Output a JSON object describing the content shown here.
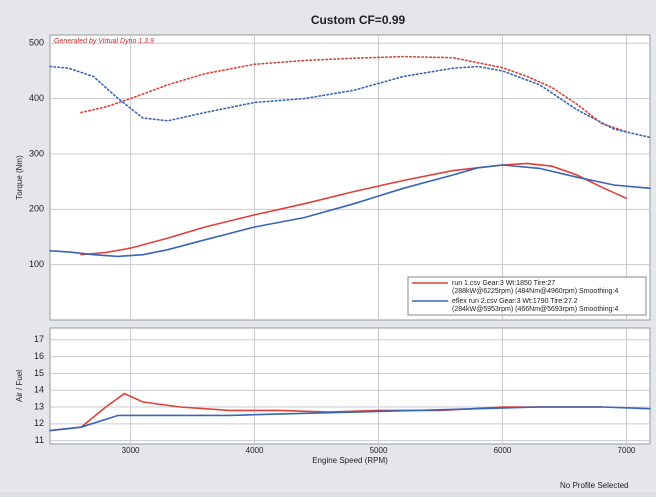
{
  "chart_data": [
    {
      "type": "line",
      "title": "Custom CF=0.99",
      "subtitle": "Generated by Virtual Dyno 1.3.9",
      "y_label": "Torque (Nm)",
      "xlim": [
        2350,
        7190
      ],
      "ylim": [
        0,
        515
      ],
      "xticks": [
        3000,
        4000,
        5000,
        6000,
        7000
      ],
      "yticks": [
        100,
        200,
        300,
        400,
        500
      ],
      "grid": true,
      "legend": "lower right",
      "series": [
        {
          "name": "run 1.csv Gear:3 Wt:1850 Tire:27",
          "detail": "(288kW@6225rpm) (484Nm@4960rpm) Smoothing:4",
          "color": "#e0403a",
          "x": [
            2600,
            2800,
            3000,
            3300,
            3600,
            4000,
            4400,
            4800,
            5200,
            5600,
            6000,
            6200,
            6400,
            6600,
            6800,
            7000
          ],
          "torque": [
            375,
            385,
            400,
            425,
            445,
            462,
            469,
            473,
            476,
            474,
            456,
            440,
            420,
            390,
            355,
            340
          ],
          "power": [
            118,
            122,
            130,
            148,
            168,
            190,
            210,
            232,
            252,
            270,
            280,
            283,
            278,
            262,
            240,
            220
          ]
        },
        {
          "name": "eflex run 2.csv Gear:3 Wt:1790 Tire:27.2",
          "detail": "(284kW@5953rpm) (466Nm@5693rpm) Smoothing:4",
          "color": "#3a64b8",
          "x": [
            2350,
            2500,
            2700,
            2900,
            3100,
            3300,
            3600,
            4000,
            4400,
            4800,
            5200,
            5600,
            5800,
            6000,
            6300,
            6600,
            6900,
            7190
          ],
          "torque": [
            458,
            455,
            440,
            400,
            365,
            360,
            375,
            393,
            400,
            415,
            440,
            455,
            458,
            450,
            425,
            380,
            345,
            330
          ],
          "power": [
            125,
            123,
            118,
            115,
            118,
            127,
            145,
            168,
            185,
            210,
            238,
            262,
            275,
            280,
            274,
            258,
            244,
            238
          ]
        }
      ]
    },
    {
      "type": "line",
      "y_label": "Air / Fuel",
      "x_label": "Engine Speed (RPM)",
      "xlim": [
        2350,
        7190
      ],
      "ylim": [
        10.8,
        17.7
      ],
      "xticks": [
        3000,
        4000,
        5000,
        6000,
        7000
      ],
      "yticks": [
        11,
        12,
        13,
        14,
        15,
        16,
        17
      ],
      "grid": true,
      "series": [
        {
          "color": "#e0403a",
          "x": [
            2350,
            2600,
            2800,
            2950,
            3100,
            3400,
            3800,
            4200,
            4600,
            5000,
            5500,
            6000,
            6500,
            6800
          ],
          "values": [
            11.6,
            11.8,
            13.0,
            13.8,
            13.3,
            13.0,
            12.8,
            12.8,
            12.7,
            12.8,
            12.8,
            13.0,
            13.0,
            13.0
          ]
        },
        {
          "color": "#3a64b8",
          "x": [
            2350,
            2600,
            2900,
            3300,
            3800,
            4300,
            4800,
            5300,
            5800,
            6300,
            6800,
            7190
          ],
          "values": [
            11.6,
            11.8,
            12.5,
            12.5,
            12.5,
            12.6,
            12.7,
            12.8,
            12.9,
            13.0,
            13.0,
            12.9
          ]
        }
      ]
    }
  ],
  "status": "No Profile Selected"
}
